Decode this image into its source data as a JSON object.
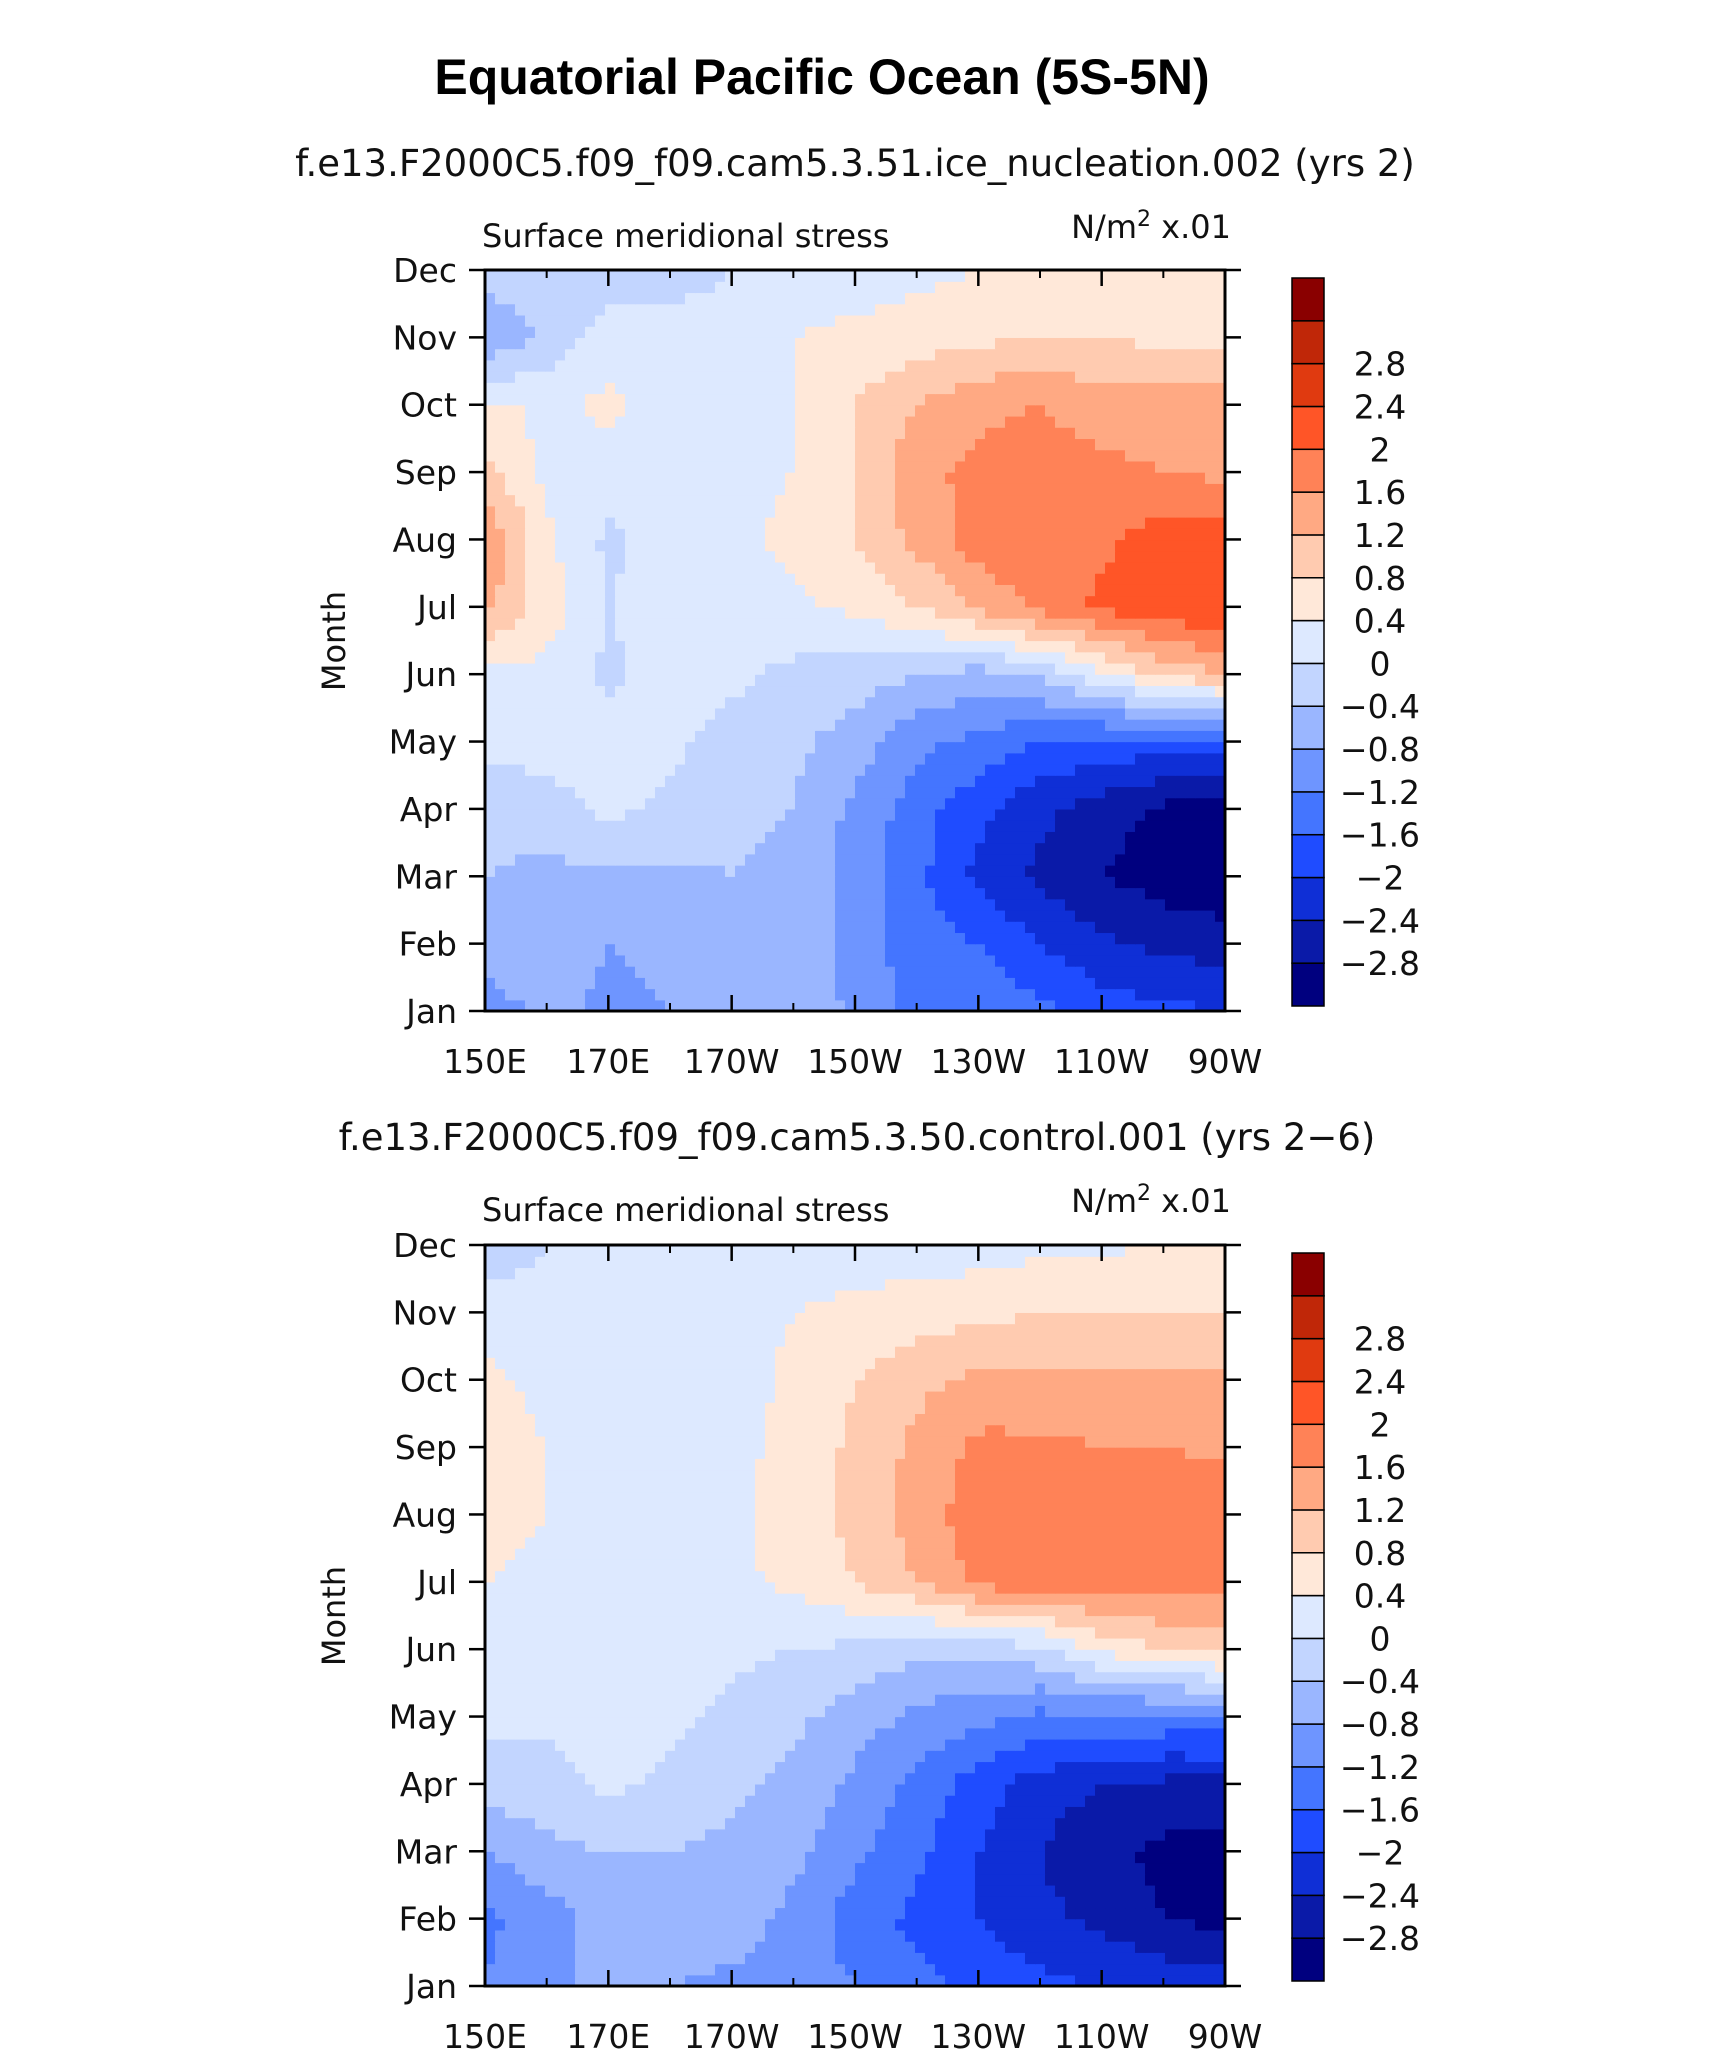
{
  "title": "Equatorial Pacific Ocean (5S-5N)",
  "colors": {
    "levels": [
      "#00007f",
      "#0a1aa8",
      "#0f2fd6",
      "#1f4cff",
      "#4475ff",
      "#6e95ff",
      "#9ab6ff",
      "#c2d5ff",
      "#dde9ff",
      "#ffe8d9",
      "#ffcbb0",
      "#ffa983",
      "#ff8257",
      "#ff5527",
      "#e03a10",
      "#c02708",
      "#8a0000"
    ]
  },
  "chart_data": [
    {
      "type": "heatmap",
      "subtitle": "f.e13.F2000C5.f09_f09.cam5.3.51.ice_nucleation.002 (yrs 2)",
      "variable": "Surface meridional stress",
      "units": "N/m² x.01",
      "units_base": "N/m",
      "units_exp": "2",
      "units_scale": " x.01",
      "ylabel": "Month",
      "xlabel": "",
      "x_ticks": [
        "150E",
        "170E",
        "170W",
        "150W",
        "130W",
        "110W",
        "90W"
      ],
      "x_range": [
        150,
        270
      ],
      "y_ticks": [
        "Jan",
        "Feb",
        "Mar",
        "Apr",
        "May",
        "Jun",
        "Jul",
        "Aug",
        "Sep",
        "Oct",
        "Nov",
        "Dec"
      ],
      "colorbar_labels": [
        "−2.8",
        "−2.4",
        "−2",
        "−1.6",
        "−1.2",
        "−0.8",
        "−0.4",
        "0",
        "0.4",
        "0.8",
        "1.2",
        "1.6",
        "2",
        "2.4",
        "2.8"
      ],
      "colorbar_values": [
        -2.8,
        -2.4,
        -2,
        -1.6,
        -1.2,
        -0.8,
        -0.4,
        0,
        0.4,
        0.8,
        1.2,
        1.6,
        2,
        2.4,
        2.8
      ],
      "lon": [
        150,
        160,
        170,
        180,
        190,
        200,
        210,
        220,
        230,
        240,
        250,
        260,
        270
      ],
      "values": [
        [
          -1.0,
          -0.7,
          -0.9,
          -0.8,
          -0.6,
          -0.4,
          -0.9,
          -1.3,
          -1.3,
          -1.5,
          -1.8,
          -1.9,
          -2.0
        ],
        [
          -0.6,
          -0.5,
          -0.8,
          -0.7,
          -0.4,
          -0.5,
          -1.0,
          -1.4,
          -1.6,
          -2.0,
          -2.3,
          -2.5,
          -2.6
        ],
        [
          -0.4,
          -0.5,
          -0.5,
          -0.5,
          -0.4,
          -0.5,
          -1.0,
          -1.5,
          -2.1,
          -2.5,
          -2.8,
          -3.0,
          -3.1
        ],
        [
          -0.3,
          -0.2,
          0.1,
          -0.1,
          -0.3,
          -0.4,
          -0.9,
          -1.4,
          -1.9,
          -2.3,
          -2.6,
          -2.9,
          -3.0
        ],
        [
          0.1,
          0.2,
          0.2,
          0.1,
          -0.2,
          -0.3,
          -0.6,
          -1.1,
          -1.3,
          -1.6,
          -1.7,
          -1.8,
          -1.8
        ],
        [
          0.3,
          0.3,
          -0.1,
          0.2,
          0.1,
          -0.1,
          -0.2,
          -0.4,
          -0.6,
          -0.3,
          0.3,
          0.9,
          1.2
        ],
        [
          1.3,
          0.6,
          0.0,
          0.2,
          0.2,
          0.3,
          0.5,
          0.8,
          1.3,
          1.7,
          2.1,
          2.3,
          2.4
        ],
        [
          1.6,
          0.5,
          -0.1,
          0.2,
          0.3,
          0.5,
          0.8,
          1.3,
          1.8,
          1.9,
          1.9,
          2.2,
          2.3
        ],
        [
          0.9,
          0.3,
          0.2,
          0.3,
          0.3,
          0.4,
          0.8,
          1.5,
          1.7,
          1.8,
          1.7,
          1.6,
          1.5
        ],
        [
          0.5,
          0.3,
          0.5,
          0.2,
          0.2,
          0.4,
          0.8,
          1.2,
          1.5,
          1.6,
          1.4,
          1.4,
          1.4
        ],
        [
          -0.8,
          -0.3,
          0.2,
          0.1,
          0.1,
          0.4,
          0.5,
          0.6,
          0.7,
          0.8,
          0.8,
          0.7,
          0.7
        ],
        [
          -0.2,
          -0.1,
          -0.2,
          -0.1,
          0.0,
          0.1,
          0.2,
          0.3,
          0.4,
          0.4,
          0.5,
          0.5,
          0.5
        ]
      ]
    },
    {
      "type": "heatmap",
      "subtitle": "f.e13.F2000C5.f09_f09.cam5.3.50.control.001 (yrs 2−6)",
      "variable": "Surface meridional stress",
      "units": "N/m² x.01",
      "units_base": "N/m",
      "units_exp": "2",
      "units_scale": " x.01",
      "ylabel": "Month",
      "xlabel": "",
      "x_ticks": [
        "150E",
        "170E",
        "170W",
        "150W",
        "130W",
        "110W",
        "90W"
      ],
      "x_range": [
        150,
        270
      ],
      "y_ticks": [
        "Jan",
        "Feb",
        "Mar",
        "Apr",
        "May",
        "Jun",
        "Jul",
        "Aug",
        "Sep",
        "Oct",
        "Nov",
        "Dec"
      ],
      "colorbar_labels": [
        "−2.8",
        "−2.4",
        "−2",
        "−1.6",
        "−1.2",
        "−0.8",
        "−0.4",
        "0",
        "0.4",
        "0.8",
        "1.2",
        "1.6",
        "2",
        "2.4",
        "2.8"
      ],
      "colorbar_values": [
        -2.8,
        -2.4,
        -2,
        -1.6,
        -1.2,
        -0.8,
        -0.4,
        0,
        0.4,
        0.8,
        1.2,
        1.6,
        2,
        2.4,
        2.8
      ],
      "lon": [
        150,
        160,
        170,
        180,
        190,
        200,
        210,
        220,
        230,
        240,
        250,
        260,
        270
      ],
      "values": [
        [
          -1.2,
          -0.8,
          -0.8,
          -0.8,
          -0.9,
          -1.0,
          -1.2,
          -1.5,
          -1.7,
          -1.9,
          -2.0,
          -2.1,
          -2.2
        ],
        [
          -1.3,
          -1.0,
          -0.6,
          -0.5,
          -0.6,
          -0.9,
          -1.4,
          -1.7,
          -2.0,
          -2.3,
          -2.5,
          -2.8,
          -2.9
        ],
        [
          -0.8,
          -0.5,
          -0.4,
          -0.4,
          -0.5,
          -0.7,
          -1.1,
          -1.5,
          -2.0,
          -2.4,
          -2.7,
          -2.9,
          -3.0
        ],
        [
          -0.2,
          -0.2,
          0.1,
          -0.1,
          -0.3,
          -0.5,
          -0.9,
          -1.3,
          -1.8,
          -2.2,
          -2.4,
          -2.5,
          -2.5
        ],
        [
          0.1,
          0.1,
          0.2,
          0.1,
          -0.1,
          -0.3,
          -0.6,
          -0.9,
          -1.1,
          -1.3,
          -1.3,
          -1.3,
          -1.3
        ],
        [
          0.3,
          0.2,
          0.3,
          0.2,
          0.1,
          0.0,
          -0.1,
          -0.3,
          -0.3,
          -0.1,
          0.5,
          0.8,
          1.0
        ],
        [
          0.4,
          0.3,
          0.2,
          0.2,
          0.3,
          0.5,
          0.8,
          1.2,
          1.7,
          1.9,
          1.8,
          1.8,
          1.7
        ],
        [
          0.5,
          0.4,
          0.2,
          0.2,
          0.3,
          0.6,
          0.9,
          1.4,
          1.8,
          1.8,
          1.7,
          1.9,
          2.0
        ],
        [
          0.6,
          0.4,
          0.2,
          0.2,
          0.3,
          0.5,
          0.9,
          1.3,
          1.7,
          1.7,
          1.6,
          1.6,
          1.5
        ],
        [
          0.5,
          0.3,
          0.2,
          0.1,
          0.2,
          0.5,
          0.8,
          1.1,
          1.3,
          1.3,
          1.3,
          1.3,
          1.3
        ],
        [
          0.2,
          0.1,
          0.1,
          0.1,
          0.2,
          0.4,
          0.5,
          0.6,
          0.7,
          0.8,
          0.8,
          0.8,
          0.8
        ],
        [
          -0.2,
          0.0,
          0.1,
          0.1,
          0.1,
          0.1,
          0.2,
          0.2,
          0.2,
          0.3,
          0.3,
          0.5,
          0.6
        ]
      ]
    }
  ]
}
